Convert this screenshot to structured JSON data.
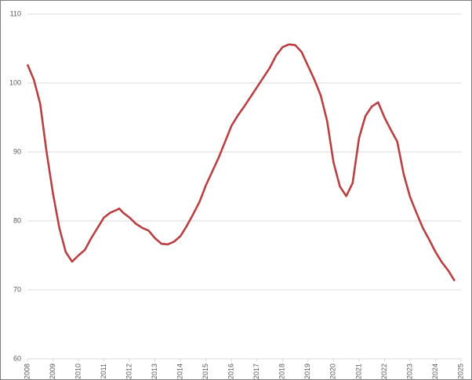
{
  "chart_data": {
    "type": "line",
    "x": [
      2008.0,
      2008.25,
      2008.5,
      2008.75,
      2009.0,
      2009.25,
      2009.5,
      2009.75,
      2010.0,
      2010.25,
      2010.5,
      2010.75,
      2011.0,
      2011.25,
      2011.5,
      2011.6,
      2011.75,
      2012.0,
      2012.25,
      2012.5,
      2012.75,
      2013.0,
      2013.25,
      2013.5,
      2013.75,
      2014.0,
      2014.25,
      2014.5,
      2014.75,
      2015.0,
      2015.25,
      2015.5,
      2015.75,
      2016.0,
      2016.25,
      2016.5,
      2016.75,
      2017.0,
      2017.25,
      2017.5,
      2017.75,
      2018.0,
      2018.25,
      2018.5,
      2018.75,
      2019.0,
      2019.25,
      2019.5,
      2019.75,
      2020.0,
      2020.25,
      2020.5,
      2020.75,
      2021.0,
      2021.25,
      2021.5,
      2021.75,
      2022.0,
      2022.25,
      2022.5,
      2022.75,
      2023.0,
      2023.25,
      2023.5,
      2023.75,
      2024.0,
      2024.25,
      2024.5,
      2024.75
    ],
    "series": [
      {
        "color": "#b84042",
        "values": [
          102.7,
          100.5,
          97,
          90,
          84,
          79,
          75.5,
          74.1,
          75,
          75.8,
          77.5,
          79,
          80.5,
          81.2,
          81.6,
          81.8,
          81.2,
          80.5,
          79.6,
          79,
          78.6,
          77.5,
          76.7,
          76.6,
          77,
          77.8,
          79.3,
          81,
          82.8,
          85.2,
          87.2,
          89.2,
          91.5,
          93.8,
          95.3,
          96.6,
          98,
          99.4,
          100.8,
          102.2,
          104,
          105.2,
          105.6,
          105.5,
          104.5,
          102.5,
          100.5,
          98.2,
          94.5,
          88.5,
          85,
          83.6,
          85.5,
          92,
          95.2,
          96.6,
          97.2,
          95,
          93.2,
          91.5,
          86.8,
          83.5,
          81.2,
          79,
          77.3,
          75.5,
          74,
          72.8,
          71.3
        ]
      }
    ],
    "xlim": [
      2008,
      2025
    ],
    "xticks": [
      2008,
      2009,
      2010,
      2011,
      2012,
      2013,
      2014,
      2015,
      2016,
      2017,
      2018,
      2019,
      2020,
      2021,
      2022,
      2023,
      2024,
      2025
    ],
    "ylim": [
      60,
      110
    ],
    "yticks": [
      60,
      70,
      80,
      90,
      100,
      110
    ],
    "grid": true
  }
}
